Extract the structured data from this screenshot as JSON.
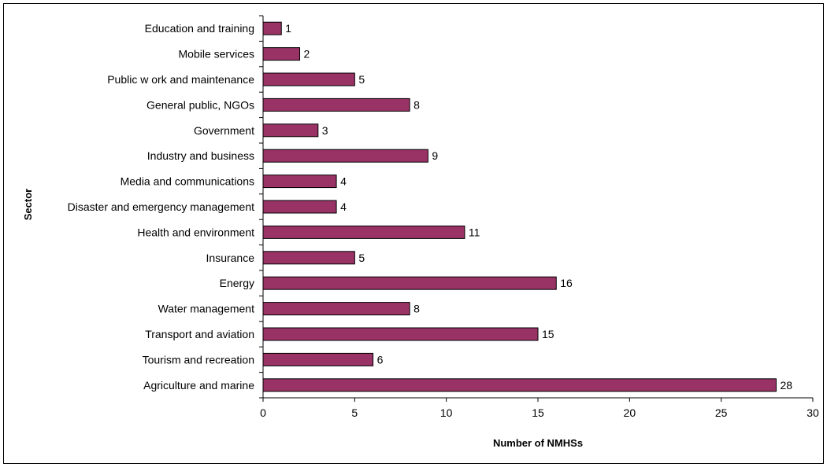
{
  "chart_data": {
    "type": "bar",
    "orientation": "horizontal",
    "title": "",
    "xlabel": "Number of NMHSs",
    "ylabel": "Sector",
    "categories": [
      "Education and training",
      "Mobile services",
      "Public w ork and maintenance",
      "General public, NGOs",
      "Government",
      "Industry and business",
      "Media and communications",
      "Disaster and emergency management",
      "Health and environment",
      "Insurance",
      "Energy",
      "Water management",
      "Transport and aviation",
      "Tourism and recreation",
      "Agriculture and marine"
    ],
    "values": [
      1,
      2,
      5,
      8,
      3,
      9,
      4,
      4,
      11,
      5,
      16,
      8,
      15,
      6,
      28
    ],
    "xlim": [
      0,
      30
    ],
    "xticks": [
      0,
      5,
      10,
      15,
      20,
      25,
      30
    ],
    "grid": false,
    "legend": "none",
    "bar_color": "#993366",
    "data_labels": true
  }
}
